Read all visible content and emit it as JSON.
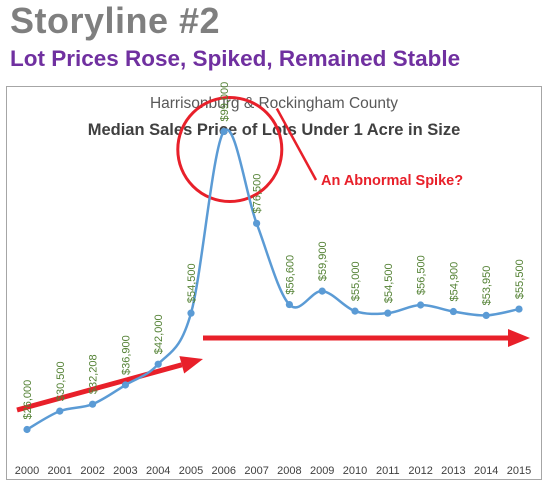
{
  "header": {
    "title": "Storyline #2",
    "subtitle": "Lot Prices Rose, Spiked, Remained Stable"
  },
  "chart_data": {
    "type": "line",
    "subtitle": "Harrisonburg & Rockingham County",
    "title": "Median Sales Price of Lots Under 1 Acre in Size",
    "xlabel": "",
    "ylabel": "",
    "x": [
      "2000",
      "2001",
      "2002",
      "2003",
      "2004",
      "2005",
      "2006",
      "2007",
      "2008",
      "2009",
      "2010",
      "2011",
      "2012",
      "2013",
      "2014",
      "2015"
    ],
    "series": [
      {
        "values": [
          26000,
          30500,
          32208,
          36900,
          42000,
          54500,
          99000,
          76500,
          56600,
          59900,
          55000,
          54500,
          56500,
          54900,
          53950,
          55500
        ],
        "labels": [
          "$26,000",
          "$30,500",
          "$32,208",
          "$36,900",
          "$42,000",
          "$54,500",
          "$99,000",
          "$76,500",
          "$56,600",
          "$59,900",
          "$55,000",
          "$54,500",
          "$56,500",
          "$54,900",
          "$53,950",
          "$55,500"
        ]
      }
    ],
    "ylim": [
      20000,
      105000
    ],
    "grid": false,
    "annotation": "An Abnormal Spike?",
    "colors": {
      "line": "#5b9bd5",
      "label": "#548235",
      "accent": "#e8202a"
    }
  }
}
